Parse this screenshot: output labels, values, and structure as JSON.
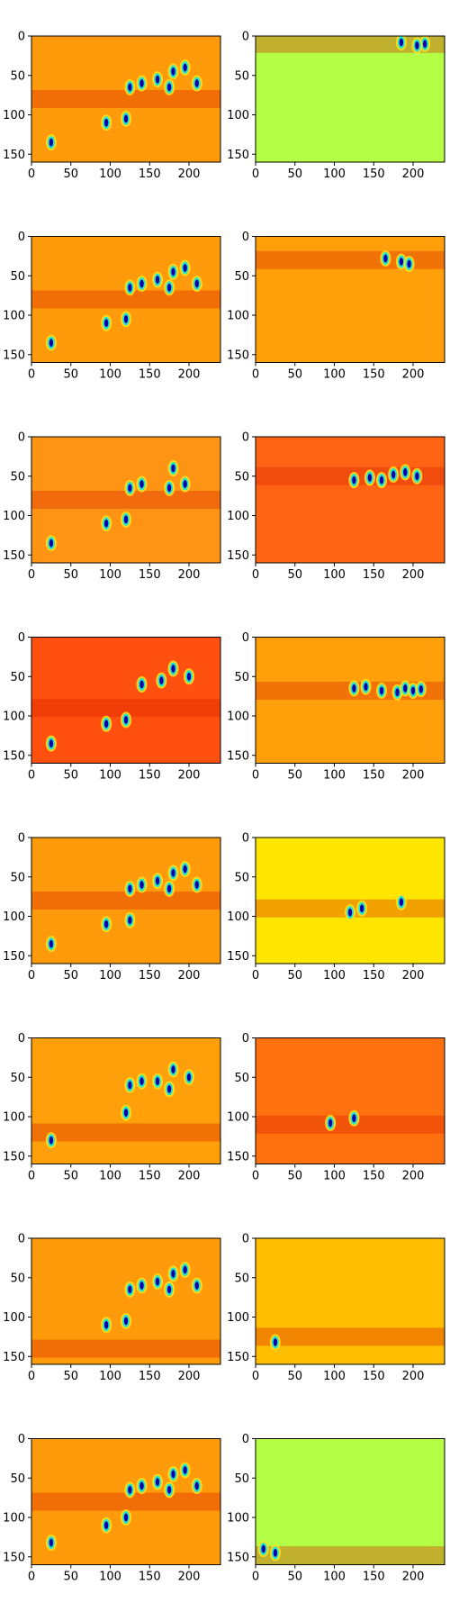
{
  "figure": {
    "grid": false,
    "legend": "none",
    "colormap": "jet"
  },
  "chart_data": [
    {
      "type": "heatmap",
      "panel": "1-1",
      "xlim": [
        0,
        240
      ],
      "ylim": [
        160,
        0
      ],
      "xticks": [
        0,
        50,
        100,
        150,
        200
      ],
      "yticks": [
        0,
        50,
        100,
        150
      ],
      "background": "#ff9a0a",
      "band_center_y": 80,
      "blobs": [
        [
          25,
          135
        ],
        [
          95,
          110
        ],
        [
          120,
          105
        ],
        [
          125,
          65
        ],
        [
          140,
          60
        ],
        [
          160,
          55
        ],
        [
          175,
          65
        ],
        [
          180,
          45
        ],
        [
          195,
          40
        ],
        [
          210,
          60
        ]
      ]
    },
    {
      "type": "heatmap",
      "panel": "1-2",
      "xlim": [
        0,
        240
      ],
      "ylim": [
        160,
        0
      ],
      "xticks": [
        0,
        50,
        100,
        150,
        200
      ],
      "yticks": [
        0,
        50,
        100,
        150
      ],
      "background": "#b4ff46",
      "band_center_y": 10,
      "blobs": [
        [
          215,
          10
        ],
        [
          205,
          12
        ],
        [
          185,
          8
        ]
      ]
    },
    {
      "type": "heatmap",
      "panel": "2-1",
      "xlim": [
        0,
        240
      ],
      "ylim": [
        160,
        0
      ],
      "xticks": [
        0,
        50,
        100,
        150,
        200
      ],
      "yticks": [
        0,
        50,
        100,
        150
      ],
      "background": "#ff9a0a",
      "band_center_y": 80,
      "blobs": [
        [
          25,
          135
        ],
        [
          95,
          110
        ],
        [
          120,
          105
        ],
        [
          125,
          65
        ],
        [
          140,
          60
        ],
        [
          160,
          55
        ],
        [
          175,
          65
        ],
        [
          180,
          45
        ],
        [
          195,
          40
        ],
        [
          210,
          60
        ]
      ]
    },
    {
      "type": "heatmap",
      "panel": "2-2",
      "xlim": [
        0,
        240
      ],
      "ylim": [
        160,
        0
      ],
      "xticks": [
        0,
        50,
        100,
        150,
        200
      ],
      "yticks": [
        0,
        50,
        100,
        150
      ],
      "background": "#ffa00a",
      "band_center_y": 30,
      "blobs": [
        [
          165,
          28
        ],
        [
          185,
          32
        ],
        [
          195,
          35
        ]
      ]
    },
    {
      "type": "heatmap",
      "panel": "3-1",
      "xlim": [
        0,
        240
      ],
      "ylim": [
        160,
        0
      ],
      "xticks": [
        0,
        50,
        100,
        150,
        200
      ],
      "yticks": [
        0,
        50,
        100,
        150
      ],
      "background": "#ff9414",
      "band_center_y": 80,
      "blobs": [
        [
          25,
          135
        ],
        [
          95,
          110
        ],
        [
          120,
          105
        ],
        [
          125,
          65
        ],
        [
          140,
          60
        ],
        [
          175,
          65
        ],
        [
          180,
          40
        ],
        [
          195,
          60
        ]
      ]
    },
    {
      "type": "heatmap",
      "panel": "3-2",
      "xlim": [
        0,
        240
      ],
      "ylim": [
        160,
        0
      ],
      "xticks": [
        0,
        50,
        100,
        150,
        200
      ],
      "yticks": [
        0,
        50,
        100,
        150
      ],
      "background": "#ff6414",
      "band_center_y": 50,
      "blobs": [
        [
          125,
          55
        ],
        [
          145,
          52
        ],
        [
          160,
          55
        ],
        [
          175,
          48
        ],
        [
          190,
          45
        ],
        [
          205,
          50
        ]
      ]
    },
    {
      "type": "heatmap",
      "panel": "4-1",
      "xlim": [
        0,
        240
      ],
      "ylim": [
        160,
        0
      ],
      "xticks": [
        0,
        50,
        100,
        150,
        200
      ],
      "yticks": [
        0,
        50,
        100,
        150
      ],
      "background": "#ff500f",
      "band_center_y": 90,
      "blobs": [
        [
          25,
          135
        ],
        [
          95,
          110
        ],
        [
          120,
          105
        ],
        [
          140,
          60
        ],
        [
          165,
          55
        ],
        [
          180,
          40
        ],
        [
          200,
          50
        ]
      ]
    },
    {
      "type": "heatmap",
      "panel": "4-2",
      "xlim": [
        0,
        240
      ],
      "ylim": [
        160,
        0
      ],
      "xticks": [
        0,
        50,
        100,
        150,
        200
      ],
      "yticks": [
        0,
        50,
        100,
        150
      ],
      "background": "#ffa00a",
      "band_center_y": 68,
      "blobs": [
        [
          125,
          65
        ],
        [
          140,
          63
        ],
        [
          160,
          68
        ],
        [
          180,
          70
        ],
        [
          190,
          65
        ],
        [
          200,
          68
        ],
        [
          210,
          66
        ]
      ]
    },
    {
      "type": "heatmap",
      "panel": "5-1",
      "xlim": [
        0,
        240
      ],
      "ylim": [
        160,
        0
      ],
      "xticks": [
        0,
        50,
        100,
        150,
        200
      ],
      "yticks": [
        0,
        50,
        100,
        150
      ],
      "background": "#ff9a0a",
      "band_center_y": 80,
      "blobs": [
        [
          25,
          135
        ],
        [
          95,
          110
        ],
        [
          125,
          105
        ],
        [
          125,
          65
        ],
        [
          140,
          60
        ],
        [
          160,
          55
        ],
        [
          175,
          65
        ],
        [
          180,
          45
        ],
        [
          195,
          40
        ],
        [
          210,
          60
        ]
      ]
    },
    {
      "type": "heatmap",
      "panel": "5-2",
      "xlim": [
        0,
        240
      ],
      "ylim": [
        160,
        0
      ],
      "xticks": [
        0,
        50,
        100,
        150,
        200
      ],
      "yticks": [
        0,
        50,
        100,
        150
      ],
      "background": "#ffe600",
      "band_center_y": 90,
      "blobs": [
        [
          120,
          95
        ],
        [
          135,
          90
        ],
        [
          185,
          82
        ]
      ]
    },
    {
      "type": "heatmap",
      "panel": "6-1",
      "xlim": [
        0,
        240
      ],
      "ylim": [
        160,
        0
      ],
      "xticks": [
        0,
        50,
        100,
        150,
        200
      ],
      "yticks": [
        0,
        50,
        100,
        150
      ],
      "background": "#ffa00a",
      "band_center_y": 120,
      "blobs": [
        [
          25,
          130
        ],
        [
          120,
          95
        ],
        [
          125,
          60
        ],
        [
          140,
          55
        ],
        [
          160,
          55
        ],
        [
          175,
          65
        ],
        [
          180,
          40
        ],
        [
          200,
          50
        ]
      ]
    },
    {
      "type": "heatmap",
      "panel": "6-2",
      "xlim": [
        0,
        240
      ],
      "ylim": [
        160,
        0
      ],
      "xticks": [
        0,
        50,
        100,
        150,
        200
      ],
      "yticks": [
        0,
        50,
        100,
        150
      ],
      "background": "#ff700f",
      "band_center_y": 110,
      "blobs": [
        [
          95,
          108
        ],
        [
          125,
          102
        ]
      ]
    },
    {
      "type": "heatmap",
      "panel": "7-1",
      "xlim": [
        0,
        240
      ],
      "ylim": [
        160,
        0
      ],
      "xticks": [
        0,
        50,
        100,
        150,
        200
      ],
      "yticks": [
        0,
        50,
        100,
        150
      ],
      "background": "#ff9a0a",
      "band_center_y": 140,
      "blobs": [
        [
          95,
          110
        ],
        [
          120,
          105
        ],
        [
          125,
          65
        ],
        [
          140,
          60
        ],
        [
          160,
          55
        ],
        [
          175,
          65
        ],
        [
          180,
          45
        ],
        [
          195,
          40
        ],
        [
          210,
          60
        ]
      ]
    },
    {
      "type": "heatmap",
      "panel": "7-2",
      "xlim": [
        0,
        240
      ],
      "ylim": [
        160,
        0
      ],
      "xticks": [
        0,
        50,
        100,
        150,
        200
      ],
      "yticks": [
        0,
        50,
        100,
        150
      ],
      "background": "#ffbe00",
      "band_center_y": 125,
      "blobs": [
        [
          25,
          132
        ]
      ]
    },
    {
      "type": "heatmap",
      "panel": "8-1",
      "xlim": [
        0,
        240
      ],
      "ylim": [
        160,
        0
      ],
      "xticks": [
        0,
        50,
        100,
        150,
        200
      ],
      "yticks": [
        0,
        50,
        100,
        150
      ],
      "background": "#ff9a0a",
      "band_center_y": 80,
      "blobs": [
        [
          25,
          132
        ],
        [
          95,
          110
        ],
        [
          120,
          100
        ],
        [
          125,
          65
        ],
        [
          140,
          60
        ],
        [
          160,
          55
        ],
        [
          175,
          65
        ],
        [
          180,
          45
        ],
        [
          195,
          40
        ],
        [
          210,
          60
        ]
      ]
    },
    {
      "type": "heatmap",
      "panel": "8-2",
      "xlim": [
        0,
        240
      ],
      "ylim": [
        160,
        0
      ],
      "xticks": [
        0,
        50,
        100,
        150,
        200
      ],
      "yticks": [
        0,
        50,
        100,
        150
      ],
      "background": "#b4ff46",
      "band_center_y": 148,
      "blobs": [
        [
          25,
          145
        ],
        [
          10,
          140
        ]
      ]
    }
  ]
}
